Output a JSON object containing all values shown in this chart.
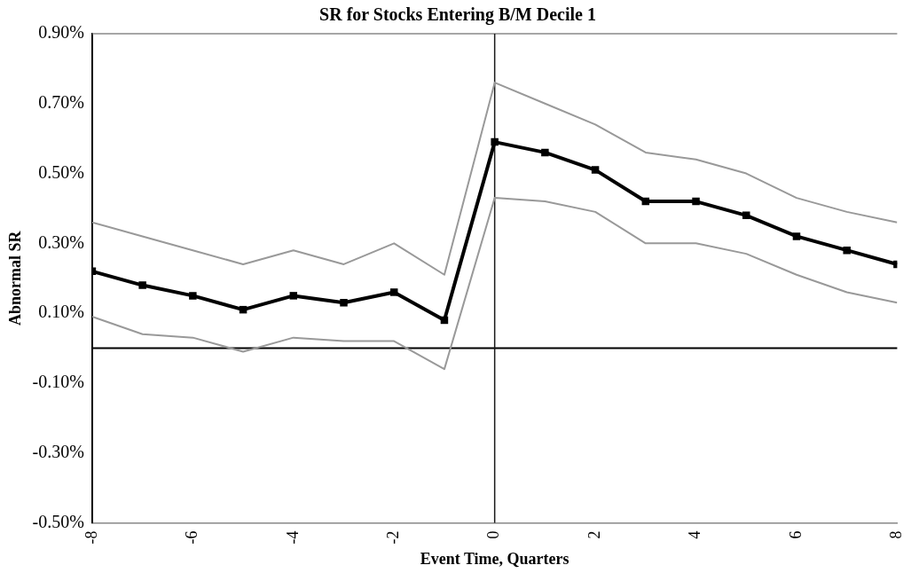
{
  "chart_data": {
    "type": "line",
    "title": "SR for Stocks Entering B/M Decile 1",
    "xlabel": "Event Time, Quarters",
    "ylabel": "Abnormal SR",
    "x": [
      -8,
      -7,
      -6,
      -5,
      -4,
      -3,
      -2,
      -1,
      0,
      1,
      2,
      3,
      4,
      5,
      6,
      7,
      8
    ],
    "series": [
      {
        "color": "#999999",
        "marker": "none",
        "values": [
          0.36,
          0.32,
          0.28,
          0.24,
          0.28,
          0.24,
          0.3,
          0.21,
          0.76,
          0.7,
          0.64,
          0.56,
          0.54,
          0.5,
          0.43,
          0.39,
          0.36
        ]
      },
      {
        "color": "#999999",
        "marker": "none",
        "values": [
          0.09,
          0.04,
          0.03,
          -0.01,
          0.03,
          0.02,
          0.02,
          -0.06,
          0.43,
          0.42,
          0.39,
          0.3,
          0.3,
          0.27,
          0.21,
          0.16,
          0.13
        ]
      },
      {
        "color": "#000000",
        "marker": "square",
        "values": [
          0.22,
          0.18,
          0.15,
          0.11,
          0.15,
          0.13,
          0.16,
          0.08,
          0.59,
          0.56,
          0.51,
          0.42,
          0.42,
          0.38,
          0.32,
          0.28,
          0.24
        ]
      }
    ],
    "xlim": [
      -8,
      8
    ],
    "xticks": [
      -8,
      -6,
      -4,
      -2,
      0,
      2,
      4,
      6,
      8
    ],
    "ylim": [
      -0.5,
      0.9
    ],
    "yticks": [
      {
        "value": -0.5,
        "label": "-0.50%"
      },
      {
        "value": -0.3,
        "label": "-0.30%"
      },
      {
        "value": -0.1,
        "label": "-0.10%"
      },
      {
        "value": 0.1,
        "label": "0.10%"
      },
      {
        "value": 0.3,
        "label": "0.30%"
      },
      {
        "value": 0.5,
        "label": "0.50%"
      },
      {
        "value": 0.7,
        "label": "0.70%"
      },
      {
        "value": 0.9,
        "label": "0.90%"
      }
    ],
    "ref_lines": [
      {
        "axis": "y",
        "value": 0,
        "color": "#000000"
      },
      {
        "axis": "x",
        "value": 0,
        "color": "#1a1a1a"
      }
    ],
    "grid": false,
    "legend": false
  }
}
